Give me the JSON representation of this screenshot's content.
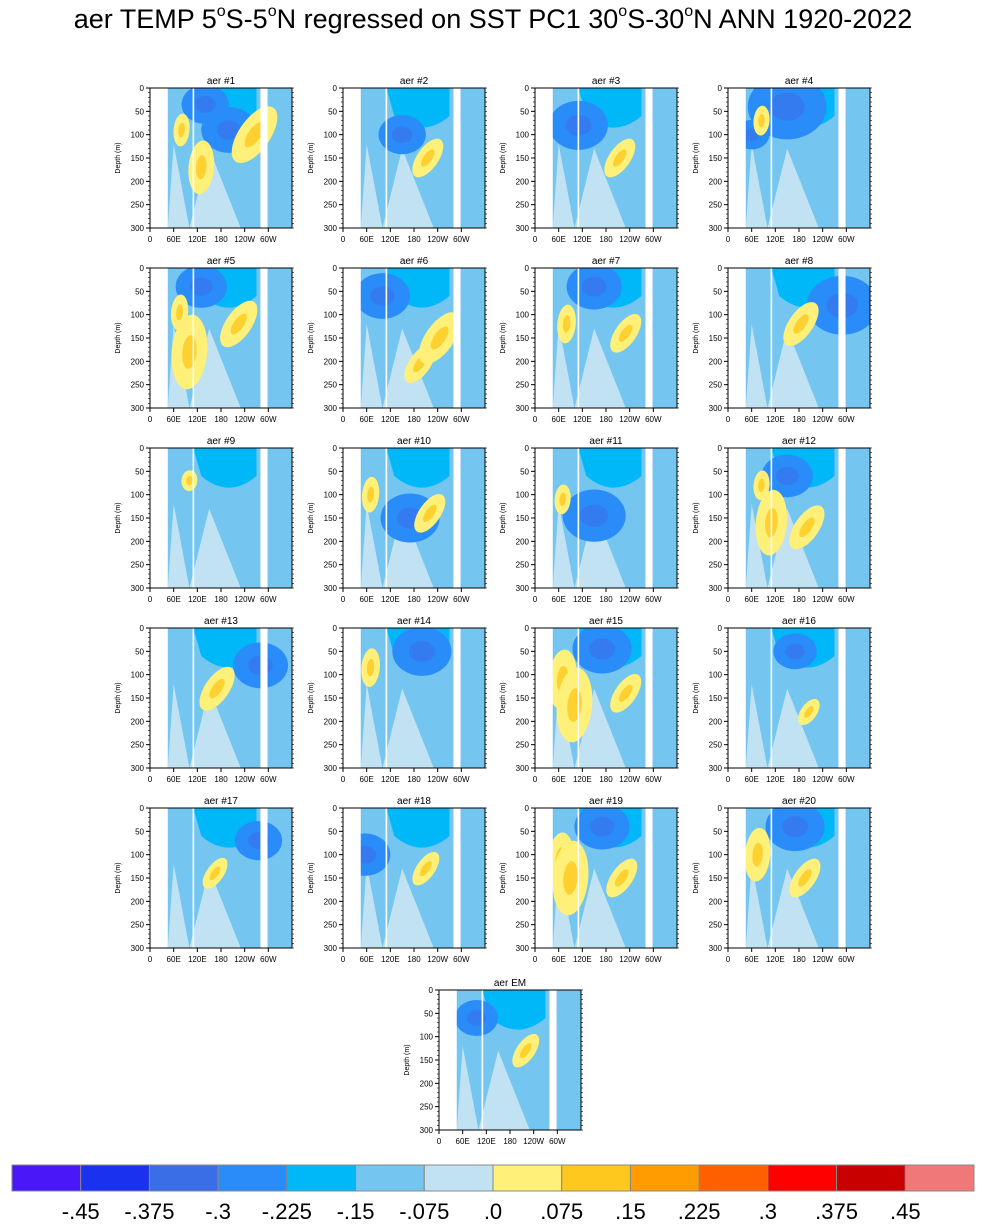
{
  "title_parts": [
    "aer TEMP 5",
    "o",
    "S-5",
    "o",
    "N regressed on SST PC1 30",
    "o",
    "S-30",
    "o",
    "N ANN 1920-2022"
  ],
  "chart_data": {
    "type": "heatmap",
    "title": "aer TEMP 5oS-5oN regressed on SST PC1 30oS-30oN ANN 1920-2022",
    "ylabel": "Depth (m)",
    "xlabel": "",
    "ylim": [
      300,
      0
    ],
    "y_ticks": [
      "0",
      "50",
      "100",
      "150",
      "200",
      "250",
      "300"
    ],
    "x_ticks": [
      "0",
      "60E",
      "120E",
      "180",
      "120W",
      "60W"
    ],
    "panels": [
      {
        "title": "aer #1",
        "warm": [
          [
            80,
            90,
            110
          ],
          [
            130,
            170,
            180
          ],
          [
            265,
            100,
            220
          ]
        ],
        "cool": [
          [
            140,
            35,
            120
          ],
          [
            200,
            90,
            140
          ]
        ]
      },
      {
        "title": "aer #2",
        "warm": [
          [
            215,
            150,
            150
          ]
        ],
        "cool": [
          [
            150,
            100,
            120
          ]
        ]
      },
      {
        "title": "aer #3",
        "warm": [
          [
            215,
            150,
            150
          ]
        ],
        "cool": [
          [
            110,
            80,
            150
          ]
        ]
      },
      {
        "title": "aer #4",
        "warm": [
          [
            85,
            70,
            100
          ]
        ],
        "cool": [
          [
            60,
            100,
            90
          ],
          [
            150,
            40,
            200
          ]
        ]
      },
      {
        "title": "aer #5",
        "warm": [
          [
            75,
            95,
            120
          ],
          [
            225,
            120,
            180
          ],
          [
            100,
            180,
            250
          ]
        ],
        "cool": [
          [
            130,
            40,
            130
          ]
        ]
      },
      {
        "title": "aer #6",
        "warm": [
          [
            195,
            205,
            150
          ],
          [
            245,
            150,
            200
          ]
        ],
        "cool": [
          [
            100,
            60,
            140
          ]
        ]
      },
      {
        "title": "aer #7",
        "warm": [
          [
            80,
            120,
            130
          ],
          [
            230,
            140,
            150
          ]
        ],
        "cool": [
          [
            150,
            40,
            140
          ]
        ]
      },
      {
        "title": "aer #8",
        "warm": [
          [
            185,
            120,
            170
          ]
        ],
        "cool": [
          [
            290,
            80,
            180
          ]
        ]
      },
      {
        "title": "aer #9",
        "warm": [
          [
            100,
            70,
            70
          ]
        ],
        "cool": []
      },
      {
        "title": "aer #10",
        "warm": [
          [
            70,
            100,
            120
          ],
          [
            220,
            140,
            150
          ]
        ],
        "cool": [
          [
            170,
            150,
            150
          ]
        ]
      },
      {
        "title": "aer #11",
        "warm": [
          [
            70,
            110,
            100
          ]
        ],
        "cool": [
          [
            150,
            145,
            160
          ]
        ]
      },
      {
        "title": "aer #12",
        "warm": [
          [
            85,
            80,
            100
          ],
          [
            110,
            160,
            220
          ],
          [
            200,
            170,
            170
          ]
        ],
        "cool": [
          [
            150,
            60,
            130
          ]
        ]
      },
      {
        "title": "aer #13",
        "warm": [
          [
            170,
            130,
            170
          ]
        ],
        "cool": [
          [
            280,
            80,
            140
          ]
        ]
      },
      {
        "title": "aer #14",
        "warm": [
          [
            70,
            85,
            130
          ]
        ],
        "cool": [
          [
            200,
            50,
            150
          ]
        ]
      },
      {
        "title": "aer #15",
        "warm": [
          [
            70,
            110,
            200
          ],
          [
            100,
            165,
            250
          ],
          [
            230,
            140,
            150
          ]
        ],
        "cool": [
          [
            170,
            45,
            150
          ]
        ]
      },
      {
        "title": "aer #16",
        "warm": [
          [
            205,
            180,
            100
          ]
        ],
        "cool": [
          [
            170,
            50,
            110
          ]
        ]
      },
      {
        "title": "aer #17",
        "warm": [
          [
            165,
            140,
            120
          ]
        ],
        "cool": [
          [
            275,
            70,
            120
          ]
        ]
      },
      {
        "title": "aer #18",
        "warm": [
          [
            210,
            130,
            130
          ]
        ],
        "cool": [
          [
            55,
            100,
            130
          ]
        ]
      },
      {
        "title": "aer #19",
        "warm": [
          [
            65,
            110,
            180
          ],
          [
            90,
            150,
            250
          ],
          [
            220,
            150,
            150
          ]
        ],
        "cool": [
          [
            170,
            40,
            140
          ]
        ]
      },
      {
        "title": "aer #20",
        "warm": [
          [
            75,
            100,
            180
          ],
          [
            195,
            150,
            150
          ]
        ],
        "cool": [
          [
            170,
            40,
            150
          ]
        ]
      },
      {
        "title": "aer EM",
        "warm": [
          [
            220,
            130,
            130
          ]
        ],
        "cool": [
          [
            95,
            60,
            110
          ]
        ]
      }
    ],
    "land_bands_lon": [
      [
        0,
        45
      ],
      [
        108,
        112
      ],
      [
        280,
        298
      ]
    ],
    "colorbar": {
      "labels": [
        "-.45",
        "-.375",
        "-.3",
        "-.225",
        "-.15",
        "-.075",
        ".0",
        ".075",
        ".15",
        ".225",
        ".3",
        ".375",
        ".45"
      ],
      "colors": [
        "#4a18f8",
        "#1a32f0",
        "#3a6ee6",
        "#2a8cf8",
        "#00b8f8",
        "#74c6f0",
        "#c0e2f2",
        "#fef078",
        "#fec81e",
        "#fe9c00",
        "#fe6000",
        "#fe0000",
        "#c80000",
        "#f07878"
      ]
    }
  }
}
